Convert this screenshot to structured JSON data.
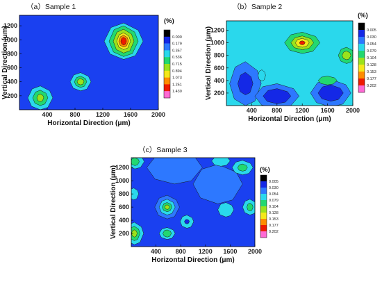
{
  "figure": {
    "background": "#ffffff"
  },
  "chart_data": [
    {
      "id": "p1",
      "type": "heatmap",
      "title": "（a）Sample 1",
      "xlabel": "Horizontal Direction (μm)",
      "ylabel": "Vertical Direction (μm)",
      "xlim": [
        0,
        2000
      ],
      "ylim": [
        0,
        1350
      ],
      "xticks": [
        "400",
        "800",
        "1200",
        "1600",
        "2000"
      ],
      "yticks": [
        "200",
        "400",
        "600",
        "800",
        "1000",
        "1200"
      ],
      "xtick_values": [
        400,
        800,
        1200,
        1600,
        2000
      ],
      "ytick_values": [
        200,
        400,
        600,
        800,
        1000,
        1200
      ],
      "colorbar_unit": "(%)",
      "colorbar_labels": [
        "0.000",
        "0.179",
        "0.357",
        "0.536",
        "0.715",
        "0.894",
        "1.073",
        "1.251",
        "1.430"
      ],
      "colorbar_colors": [
        "#000000",
        "#1428e6",
        "#2d78ff",
        "#2ad8ec",
        "#22d870",
        "#9be21c",
        "#f4e81a",
        "#ff8c00",
        "#ee1a00",
        "#ff6ad4"
      ],
      "background_color": "#1a40f0",
      "hotspots": [
        {
          "x": 1500,
          "y": 980,
          "levels": [
            {
              "color": "#2ad8ec",
              "rx": 280,
              "ry": 260
            },
            {
              "color": "#22d870",
              "rx": 210,
              "ry": 220
            },
            {
              "color": "#9be21c",
              "rx": 150,
              "ry": 170
            },
            {
              "color": "#f4e81a",
              "rx": 100,
              "ry": 120
            },
            {
              "color": "#ff8c00",
              "rx": 70,
              "ry": 85
            },
            {
              "color": "#ee1a00",
              "rx": 40,
              "ry": 55
            }
          ]
        },
        {
          "x": 880,
          "y": 400,
          "levels": [
            {
              "color": "#2ad8ec",
              "rx": 150,
              "ry": 130
            },
            {
              "color": "#22d870",
              "rx": 90,
              "ry": 80
            },
            {
              "color": "#9be21c",
              "rx": 50,
              "ry": 45
            }
          ]
        },
        {
          "x": 300,
          "y": 170,
          "levels": [
            {
              "color": "#2ad8ec",
              "rx": 180,
              "ry": 170
            },
            {
              "color": "#22d870",
              "rx": 110,
              "ry": 110
            },
            {
              "color": "#9be21c",
              "rx": 50,
              "ry": 55
            }
          ]
        }
      ]
    },
    {
      "id": "p2",
      "type": "heatmap",
      "title": "（b）Sample 2",
      "xlabel": "Horizontal Direction (μm)",
      "ylabel": "Vertical Direction (μm)",
      "xlim": [
        0,
        2000
      ],
      "ylim": [
        0,
        1350
      ],
      "xticks": [
        "400",
        "800",
        "1200",
        "1600",
        "2000"
      ],
      "yticks": [
        "200",
        "400",
        "600",
        "800",
        "1000",
        "1200"
      ],
      "xtick_values": [
        400,
        800,
        1200,
        1600,
        2000
      ],
      "ytick_values": [
        200,
        400,
        600,
        800,
        1000,
        1200
      ],
      "colorbar_unit": "(%)",
      "colorbar_labels": [
        "0.005",
        "0.030",
        "0.054",
        "0.079",
        "0.104",
        "0.128",
        "0.153",
        "0.177",
        "0.202"
      ],
      "colorbar_colors": [
        "#000000",
        "#1428e6",
        "#2d78ff",
        "#2ad8ec",
        "#22d870",
        "#9be21c",
        "#f4e81a",
        "#ff8c00",
        "#ee1a00",
        "#ff6ad4"
      ],
      "background_color": "#2ad8ec",
      "hotspots": [
        {
          "x": 300,
          "y": 350,
          "levels": [
            {
              "color": "#2d78ff",
              "rx": 250,
              "ry": 350
            },
            {
              "color": "#1428e6",
              "rx": 120,
              "ry": 180
            }
          ]
        },
        {
          "x": 800,
          "y": 150,
          "levels": [
            {
              "color": "#2d78ff",
              "rx": 350,
              "ry": 200
            },
            {
              "color": "#1428e6",
              "rx": 220,
              "ry": 120
            }
          ]
        },
        {
          "x": 1650,
          "y": 200,
          "levels": [
            {
              "color": "#2d78ff",
              "rx": 320,
              "ry": 220
            },
            {
              "color": "#1428e6",
              "rx": 200,
              "ry": 130
            }
          ]
        },
        {
          "x": 1200,
          "y": 1000,
          "levels": [
            {
              "color": "#22d870",
              "rx": 280,
              "ry": 170
            },
            {
              "color": "#9be21c",
              "rx": 180,
              "ry": 110
            },
            {
              "color": "#f4e81a",
              "rx": 110,
              "ry": 70
            },
            {
              "color": "#ee1a00",
              "rx": 45,
              "ry": 32
            }
          ]
        },
        {
          "x": 1900,
          "y": 800,
          "levels": [
            {
              "color": "#22d870",
              "rx": 130,
              "ry": 130
            },
            {
              "color": "#9be21c",
              "rx": 70,
              "ry": 70
            }
          ]
        },
        {
          "x": 1600,
          "y": 400,
          "levels": [
            {
              "color": "#22d870",
              "rx": 150,
              "ry": 70
            }
          ]
        },
        {
          "x": 560,
          "y": 480,
          "levels": [
            {
              "color": "#2ad8ec",
              "rx": 60,
              "ry": 90
            }
          ]
        }
      ]
    },
    {
      "id": "p3",
      "type": "heatmap",
      "title": "（c）Sample 3",
      "xlabel": "Horizontal Direction (μm)",
      "ylabel": "Vertical Direction (μm)",
      "xlim": [
        0,
        2000
      ],
      "ylim": [
        0,
        1350
      ],
      "xticks": [
        "400",
        "800",
        "1200",
        "1600",
        "2000"
      ],
      "yticks": [
        "200",
        "400",
        "600",
        "800",
        "1000",
        "1200"
      ],
      "xtick_values": [
        400,
        800,
        1200,
        1600,
        2000
      ],
      "ytick_values": [
        200,
        400,
        600,
        800,
        1000,
        1200
      ],
      "colorbar_unit": "(%)",
      "colorbar_labels": [
        "0.005",
        "0.030",
        "0.054",
        "0.079",
        "0.104",
        "0.128",
        "0.153",
        "0.177",
        "0.202"
      ],
      "colorbar_colors": [
        "#000000",
        "#1428e6",
        "#2d78ff",
        "#2ad8ec",
        "#22d870",
        "#9be21c",
        "#f4e81a",
        "#ff8c00",
        "#ee1a00",
        "#ff6ad4"
      ],
      "background_color": "#1a40f0",
      "hotspots": [
        {
          "x": 700,
          "y": 1200,
          "levels": [
            {
              "color": "#2d78ff",
              "rx": 450,
              "ry": 250
            }
          ]
        },
        {
          "x": 1400,
          "y": 950,
          "levels": [
            {
              "color": "#2d78ff",
              "rx": 400,
              "ry": 300
            }
          ]
        },
        {
          "x": 1800,
          "y": 1200,
          "levels": [
            {
              "color": "#2ad8ec",
              "rx": 170,
              "ry": 110
            },
            {
              "color": "#22d870",
              "rx": 80,
              "ry": 55
            }
          ]
        },
        {
          "x": 1450,
          "y": 1300,
          "levels": [
            {
              "color": "#2ad8ec",
              "rx": 150,
              "ry": 80
            }
          ]
        },
        {
          "x": 60,
          "y": 1290,
          "levels": [
            {
              "color": "#2ad8ec",
              "rx": 150,
              "ry": 110
            },
            {
              "color": "#22d870",
              "rx": 70,
              "ry": 60
            }
          ]
        },
        {
          "x": 580,
          "y": 600,
          "levels": [
            {
              "color": "#2d78ff",
              "rx": 200,
              "ry": 180
            },
            {
              "color": "#2ad8ec",
              "rx": 130,
              "ry": 120
            },
            {
              "color": "#22d870",
              "rx": 80,
              "ry": 70
            },
            {
              "color": "#9be21c",
              "rx": 40,
              "ry": 35
            }
          ]
        },
        {
          "x": 580,
          "y": 200,
          "levels": [
            {
              "color": "#2ad8ec",
              "rx": 130,
              "ry": 90
            },
            {
              "color": "#22d870",
              "rx": 70,
              "ry": 55
            }
          ]
        },
        {
          "x": 50,
          "y": 200,
          "levels": [
            {
              "color": "#2ad8ec",
              "rx": 150,
              "ry": 170
            },
            {
              "color": "#22d870",
              "rx": 90,
              "ry": 110
            },
            {
              "color": "#9be21c",
              "rx": 45,
              "ry": 55
            }
          ]
        },
        {
          "x": 1920,
          "y": 600,
          "levels": [
            {
              "color": "#2ad8ec",
              "rx": 120,
              "ry": 120
            },
            {
              "color": "#22d870",
              "rx": 50,
              "ry": 60
            }
          ]
        },
        {
          "x": 1530,
          "y": 560,
          "levels": [
            {
              "color": "#2ad8ec",
              "rx": 130,
              "ry": 110
            }
          ]
        },
        {
          "x": 900,
          "y": 380,
          "levels": [
            {
              "color": "#2ad8ec",
              "rx": 110,
              "ry": 100
            },
            {
              "color": "#1428e6",
              "rx": 40,
              "ry": 35
            }
          ]
        },
        {
          "x": 40,
          "y": 800,
          "levels": [
            {
              "color": "#2ad8ec",
              "rx": 80,
              "ry": 90
            }
          ]
        }
      ]
    }
  ]
}
